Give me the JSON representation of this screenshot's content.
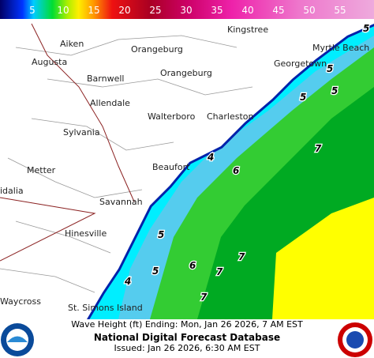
{
  "legend": {
    "ticks": [
      5,
      10,
      15,
      20,
      25,
      30,
      35,
      40,
      45,
      50,
      55
    ]
  },
  "places": [
    {
      "label": "Myrtle Beach"
    },
    {
      "label": "Kingstree"
    },
    {
      "label": "Aiken"
    },
    {
      "label": "Orangeburg"
    },
    {
      "label": "Augusta"
    },
    {
      "label": "Georgetown"
    },
    {
      "label": "Orangeburg"
    },
    {
      "label": "Barnwell"
    },
    {
      "label": "Allendale"
    },
    {
      "label": "Walterboro"
    },
    {
      "label": "Charleston"
    },
    {
      "label": "Sylvania"
    },
    {
      "label": "Beaufort"
    },
    {
      "label": "Metter"
    },
    {
      "label": "idalia"
    },
    {
      "label": "Savannah"
    },
    {
      "label": "Hinesville"
    },
    {
      "label": "Waycross"
    },
    {
      "label": "St. Simons Island"
    }
  ],
  "wave_labels": [
    5,
    5,
    5,
    5,
    7,
    4,
    6,
    5,
    7,
    6,
    5,
    7,
    4,
    7
  ],
  "footer": {
    "line1": "Wave Height (ft) Ending: Mon, Jan 26 2026, 7 AM EST",
    "title": "National Digital Forecast Database",
    "issued": "Issued: Jan 26 2026, 6:30 AM EST"
  }
}
